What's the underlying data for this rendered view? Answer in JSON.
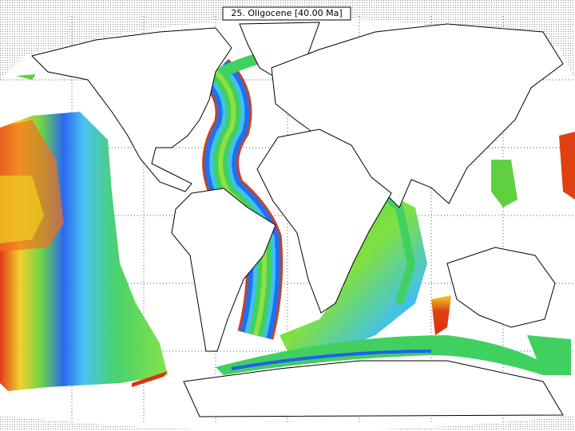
{
  "map": {
    "title": "25. Oligocene [40.00 Ma]"
  }
}
